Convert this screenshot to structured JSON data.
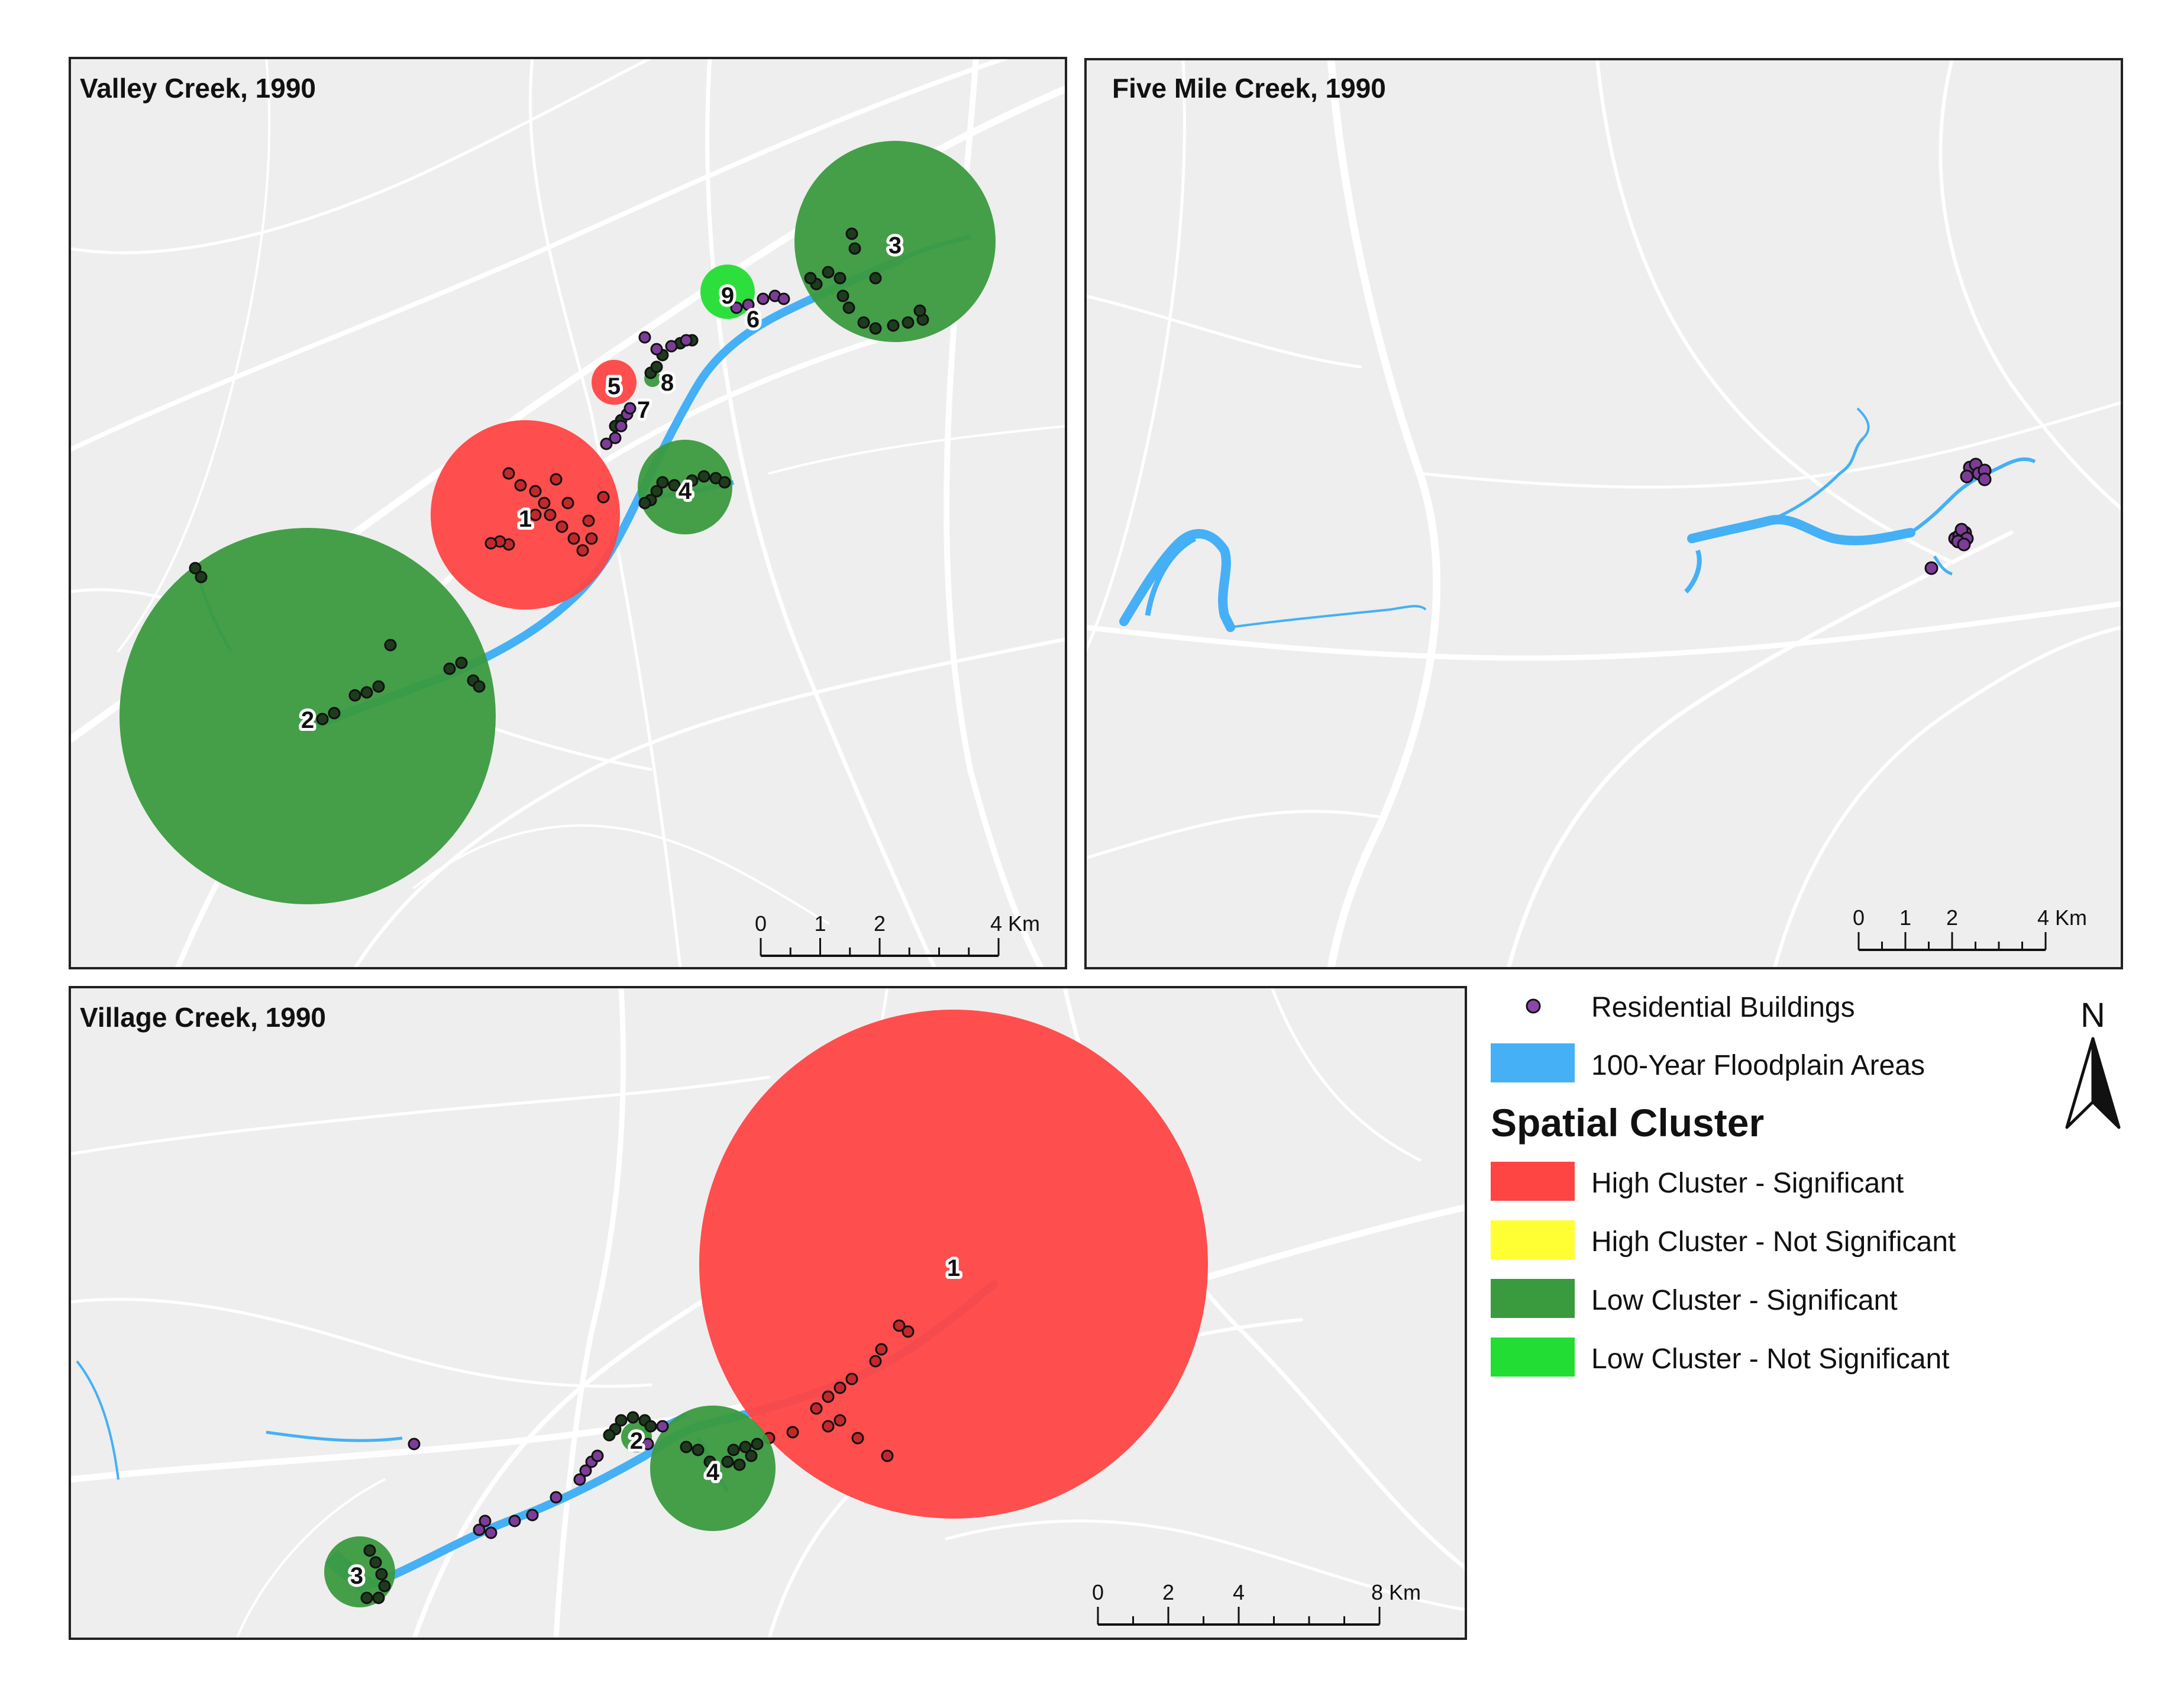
{
  "maps": [
    {
      "id": "valley-creek",
      "title": "Valley Creek, 1990",
      "scale": {
        "ticks": [
          "0",
          "1",
          "2",
          "4"
        ],
        "unit": "Km"
      },
      "clusters": [
        {
          "label": "1",
          "type": "high_significant"
        },
        {
          "label": "2",
          "type": "low_significant"
        },
        {
          "label": "3",
          "type": "low_significant"
        },
        {
          "label": "4",
          "type": "low_significant"
        },
        {
          "label": "5",
          "type": "high_significant"
        },
        {
          "label": "6",
          "type": "low_significant"
        },
        {
          "label": "7",
          "type": "low_significant"
        },
        {
          "label": "8",
          "type": "low_significant"
        },
        {
          "label": "9",
          "type": "low_not_significant"
        }
      ]
    },
    {
      "id": "five-mile-creek",
      "title": "Five Mile Creek, 1990",
      "scale": {
        "ticks": [
          "0",
          "1",
          "2",
          "4"
        ],
        "unit": "Km"
      },
      "clusters": []
    },
    {
      "id": "village-creek",
      "title": "Village Creek, 1990",
      "scale": {
        "ticks": [
          "0",
          "2",
          "4",
          "8"
        ],
        "unit": "Km"
      },
      "clusters": [
        {
          "label": "1",
          "type": "high_significant"
        },
        {
          "label": "2",
          "type": "low_significant"
        },
        {
          "label": "3",
          "type": "low_significant"
        },
        {
          "label": "4",
          "type": "low_significant"
        }
      ]
    }
  ],
  "legend": {
    "residential": {
      "label": "Residential Buildings",
      "color": "#8e44ad"
    },
    "floodplain": {
      "label": "100-Year Floodplain Areas",
      "color": "#45b0f5"
    },
    "heading": "Spatial Cluster",
    "items": [
      {
        "label": "High Cluster - Significant",
        "color": "#ff4444"
      },
      {
        "label": "High Cluster - Not Significant",
        "color": "#ffff33"
      },
      {
        "label": "Low Cluster - Significant",
        "color": "#3a9a3e"
      },
      {
        "label": "Low Cluster - Not Significant",
        "color": "#22dd33"
      }
    ]
  },
  "north_arrow": {
    "label": "N"
  },
  "colors": {
    "base_map": "#eeeeee",
    "roads": "#ffffff",
    "frame": "#222222",
    "high_significant": "#ff4444",
    "low_significant": "#3a9a3e",
    "low_not_significant": "#22dd33",
    "floodplain": "#45b0f5",
    "building_dark": "#1e3b1e",
    "building_red": "#c2282a",
    "building_purple": "#7d3c98"
  }
}
